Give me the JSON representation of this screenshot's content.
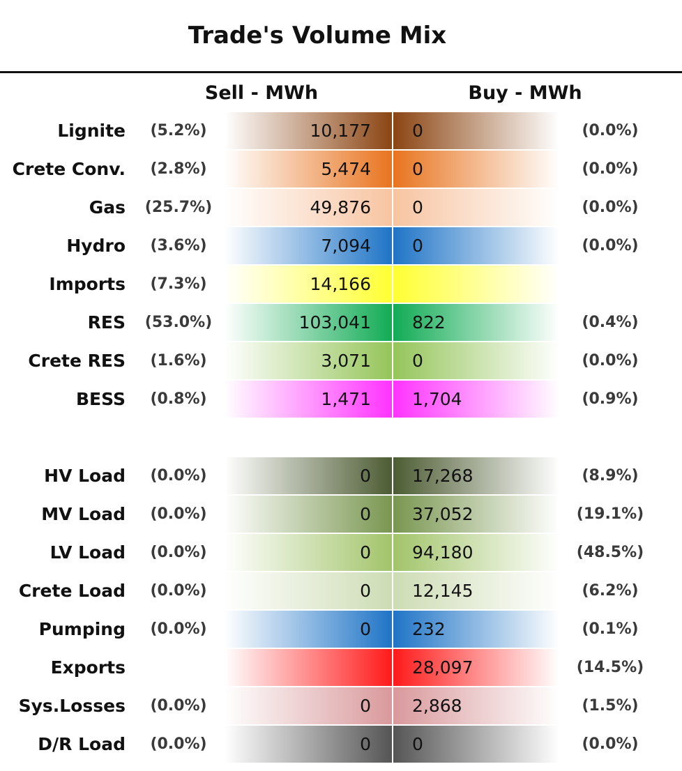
{
  "chart_data": {
    "type": "table",
    "title": "Trade's Volume Mix",
    "columns": [
      "Sell - MWh",
      "Buy - MWh"
    ],
    "groups": [
      {
        "rows": [
          {
            "name": "Lignite",
            "sell": "10,177",
            "sell_pct": "(5.2%)",
            "buy": "0",
            "buy_pct": "(0.0%)",
            "color": "#8b4513"
          },
          {
            "name": "Crete Conv.",
            "sell": "5,474",
            "sell_pct": "(2.8%)",
            "buy": "0",
            "buy_pct": "(0.0%)",
            "color": "#e8741f"
          },
          {
            "name": "Gas",
            "sell": "49,876",
            "sell_pct": "(25.7%)",
            "buy": "0",
            "buy_pct": "(0.0%)",
            "color": "#f7c4a1"
          },
          {
            "name": "Hydro",
            "sell": "7,094",
            "sell_pct": "(3.6%)",
            "buy": "0",
            "buy_pct": "(0.0%)",
            "color": "#1f74c6"
          },
          {
            "name": "Imports",
            "sell": "14,166",
            "sell_pct": "(7.3%)",
            "buy": "",
            "buy_pct": "",
            "color": "#ffff33"
          },
          {
            "name": "RES",
            "sell": "103,041",
            "sell_pct": "(53.0%)",
            "buy": "822",
            "buy_pct": "(0.4%)",
            "color": "#12ab55"
          },
          {
            "name": "Crete RES",
            "sell": "3,071",
            "sell_pct": "(1.6%)",
            "buy": "0",
            "buy_pct": "(0.0%)",
            "color": "#95c55a"
          },
          {
            "name": "BESS",
            "sell": "1,471",
            "sell_pct": "(0.8%)",
            "buy": "1,704",
            "buy_pct": "(0.9%)",
            "color": "#ff33ff"
          }
        ]
      },
      {
        "rows": [
          {
            "name": "HV Load",
            "sell": "0",
            "sell_pct": "(0.0%)",
            "buy": "17,268",
            "buy_pct": "(8.9%)",
            "color": "#4d5c33"
          },
          {
            "name": "MV Load",
            "sell": "0",
            "sell_pct": "(0.0%)",
            "buy": "37,052",
            "buy_pct": "(19.1%)",
            "color": "#799650"
          },
          {
            "name": "LV Load",
            "sell": "0",
            "sell_pct": "(0.0%)",
            "buy": "94,180",
            "buy_pct": "(48.5%)",
            "color": "#a2c46a"
          },
          {
            "name": "Crete Load",
            "sell": "0",
            "sell_pct": "(0.0%)",
            "buy": "12,145",
            "buy_pct": "(6.2%)",
            "color": "#cddcb4"
          },
          {
            "name": "Pumping",
            "sell": "0",
            "sell_pct": "(0.0%)",
            "buy": "232",
            "buy_pct": "(0.1%)",
            "color": "#1f74c6"
          },
          {
            "name": "Exports",
            "sell": "",
            "sell_pct": "",
            "buy": "28,097",
            "buy_pct": "(14.5%)",
            "color": "#ff1a1a"
          },
          {
            "name": "Sys.Losses",
            "sell": "0",
            "sell_pct": "(0.0%)",
            "buy": "2,868",
            "buy_pct": "(1.5%)",
            "color": "#d9999c"
          },
          {
            "name": "D/R Load",
            "sell": "0",
            "sell_pct": "(0.0%)",
            "buy": "0",
            "buy_pct": "(0.0%)",
            "color": "#555555"
          }
        ]
      }
    ]
  }
}
